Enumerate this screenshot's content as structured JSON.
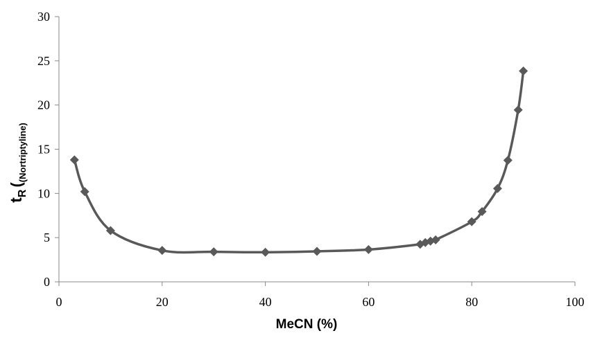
{
  "chart_data": {
    "type": "scatter",
    "title": "",
    "xlabel": "MeCN (%)",
    "ylabel_main": "t",
    "ylabel_sub1": "R",
    "ylabel_sub2": "(Nortriptyline)",
    "xlim": [
      0,
      100
    ],
    "ylim": [
      0,
      30
    ],
    "xticks": [
      0,
      20,
      40,
      60,
      80,
      100
    ],
    "yticks": [
      0,
      5,
      10,
      15,
      20,
      25,
      30
    ],
    "grid": false,
    "legend": "none",
    "series_color": "#595959",
    "series": [
      {
        "smooth": true,
        "marker": "diamond",
        "points": [
          {
            "x": 3,
            "y": 13.8
          },
          {
            "x": 5,
            "y": 10.2
          },
          {
            "x": 10,
            "y": 5.8
          },
          {
            "x": 20,
            "y": 3.55
          },
          {
            "x": 30,
            "y": 3.4
          },
          {
            "x": 40,
            "y": 3.35
          },
          {
            "x": 50,
            "y": 3.45
          },
          {
            "x": 60,
            "y": 3.65
          },
          {
            "x": 70,
            "y": 4.25
          },
          {
            "x": 71,
            "y": 4.45
          },
          {
            "x": 72,
            "y": 4.6
          },
          {
            "x": 73,
            "y": 4.75
          },
          {
            "x": 80,
            "y": 6.8
          },
          {
            "x": 82,
            "y": 7.95
          },
          {
            "x": 85,
            "y": 10.55
          },
          {
            "x": 87,
            "y": 13.75
          },
          {
            "x": 89,
            "y": 19.45
          },
          {
            "x": 90,
            "y": 23.85
          }
        ]
      }
    ]
  }
}
